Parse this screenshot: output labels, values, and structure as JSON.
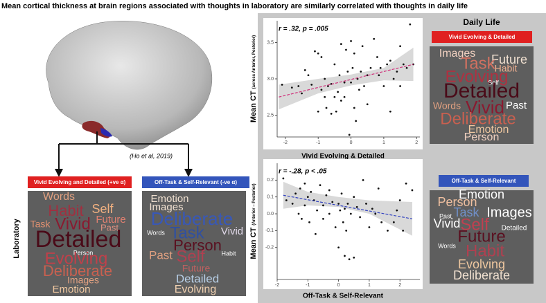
{
  "title": "Mean cortical thickness at brain regions associated with thoughts in laboratory are similarly correlated with thoughts in daily life",
  "citation": "(Ho et al, 2019)",
  "laboratory_label": "Laboratory",
  "daily_life_label": "Daily Life",
  "word_clouds": [
    {
      "header": "Vivid Evolving and Detailed (+ve α)",
      "words": [
        "Words",
        "Habit",
        "Self",
        "Future",
        "Task",
        "Vivid",
        "Past",
        "Detailed",
        "Person",
        "Evolving",
        "Deliberate",
        "Images",
        "Emotion"
      ]
    },
    {
      "header": "Off-Task & Self-Relevant (-ve α)",
      "words": [
        "Emotion",
        "Images",
        "Deliberate",
        "Words",
        "Task",
        "Vivid",
        "Person",
        "Past",
        "Self",
        "Habit",
        "Future",
        "Detailed",
        "Evolving"
      ]
    },
    {
      "header": "Vivid Evolving & Detailed",
      "words": [
        "Images",
        "Future",
        "Task",
        "Habit",
        "Evolving",
        "Self",
        "Detailed",
        "Words",
        "Vivid",
        "Past",
        "Deliberate",
        "Emotion",
        "Person"
      ]
    },
    {
      "header": "Off-Task & Self-Relevant",
      "words": [
        "Emotion",
        "Person",
        "Task",
        "Images",
        "Past",
        "Vivid",
        "Self",
        "Detailed",
        "Future",
        "Words",
        "Habit",
        "Evolving",
        "Deliberate"
      ]
    }
  ],
  "chart_data": [
    {
      "type": "scatter",
      "annotation": "r = .32, p = .005",
      "xlabel": "Vivid Evolving & Detailed",
      "ylabel": "Mean CT",
      "ylabel_note": "(across Anterior,  Posterior)",
      "xlim": [
        -2.25,
        2.1
      ],
      "ylim": [
        2.2,
        3.8
      ],
      "xticks": [
        -2,
        -1,
        0,
        1,
        2
      ],
      "yticks": [
        3.5,
        {
          "value": 3,
          "label": "3.0"
        },
        2.5
      ],
      "color": "#111111",
      "fit_color": "#d0307a",
      "band_color": "#d9d9d9",
      "x": [
        -2.1,
        -1.8,
        -1.6,
        -1.4,
        -1.3,
        -1.2,
        -1.1,
        -1.0,
        -1.0,
        -0.9,
        -0.9,
        -0.8,
        -0.8,
        -0.75,
        -0.7,
        -0.6,
        -0.6,
        -0.5,
        -0.5,
        -0.45,
        -0.4,
        -0.35,
        -0.3,
        -0.3,
        -0.2,
        -0.2,
        -0.15,
        -0.1,
        -0.05,
        0.0,
        0.0,
        0.05,
        0.1,
        0.1,
        0.2,
        0.25,
        0.3,
        0.35,
        0.4,
        0.5,
        0.5,
        0.6,
        0.7,
        0.8,
        0.85,
        0.9,
        1.0,
        1.1,
        1.2,
        1.2,
        1.3,
        1.4,
        1.5,
        1.5,
        1.6,
        1.7,
        1.8,
        1.9,
        -1.5,
        0.15
      ],
      "y": [
        2.92,
        2.88,
        2.9,
        3.12,
        3.05,
        2.92,
        3.38,
        3.35,
        2.55,
        3.3,
        2.85,
        2.75,
        3.0,
        2.6,
        2.9,
        2.52,
        2.93,
        2.75,
        3.2,
        2.55,
        2.82,
        3.05,
        2.7,
        3.48,
        2.95,
        2.75,
        3.4,
        3.1,
        2.23,
        2.95,
        3.52,
        3.15,
        2.6,
        3.35,
        3.0,
        2.85,
        3.1,
        3.45,
        2.9,
        3.05,
        2.65,
        3.15,
        3.55,
        3.3,
        3.05,
        3.15,
        2.9,
        3.2,
        2.55,
        3.25,
        3.0,
        3.1,
        3.45,
        2.9,
        3.2,
        3.15,
        3.75,
        3.2,
        2.8,
        2.42
      ],
      "fit": {
        "x": [
          -2.2,
          1.9
        ],
        "y": [
          2.75,
          3.2
        ]
      },
      "band": {
        "x": [
          -2.2,
          -1,
          0,
          1,
          1.9
        ],
        "lower": [
          2.58,
          2.8,
          2.91,
          2.98,
          2.97
        ],
        "upper": [
          2.92,
          3.0,
          3.06,
          3.15,
          3.43
        ]
      }
    },
    {
      "type": "scatter",
      "annotation": "r = -.28, p < .05",
      "xlabel": "Off-Task & Self-Relevant",
      "ylabel": "Mean CT",
      "ylabel_note": "(Anterior – Posterior)",
      "xlim": [
        -2.0,
        2.65
      ],
      "ylim": [
        -0.39,
        0.3
      ],
      "xticks": [
        -2,
        -1,
        0,
        1,
        2
      ],
      "yticks": [
        0.2,
        0.1,
        {
          "value": 0,
          "label": "0.0"
        },
        -0.1,
        -0.2
      ],
      "color": "#111111",
      "fit_color": "#3040c0",
      "band_color": "#d9d9d9",
      "x": [
        -1.8,
        -1.7,
        -1.5,
        -1.4,
        -1.3,
        -1.25,
        -1.2,
        -1.1,
        -1.1,
        -1.0,
        -0.95,
        -0.9,
        -0.8,
        -0.75,
        -0.7,
        -0.6,
        -0.5,
        -0.5,
        -0.4,
        -0.3,
        -0.3,
        -0.2,
        -0.1,
        0.0,
        0.0,
        0.05,
        0.1,
        0.15,
        0.2,
        0.2,
        0.25,
        0.3,
        0.35,
        0.4,
        0.5,
        0.5,
        0.6,
        0.7,
        0.8,
        0.9,
        1.0,
        1.1,
        1.2,
        1.3,
        1.4,
        1.6,
        1.8,
        2.0,
        2.1,
        2.2,
        2.4,
        1.9
      ],
      "y": [
        0.21,
        0.08,
        0.06,
        0.12,
        0.0,
        0.15,
        -0.03,
        0.18,
        0.05,
        0.1,
        -0.05,
        0.13,
        0.08,
        -0.12,
        0.02,
        0.17,
        0.05,
        -0.03,
        0.11,
        0.0,
        0.14,
        0.07,
        -0.08,
        0.06,
        -0.2,
        0.02,
        0.12,
        -0.05,
        0.03,
        -0.25,
        -0.1,
        0.06,
        -0.27,
        0.0,
        -0.26,
        0.1,
        0.04,
        -0.02,
        0.2,
        0.06,
        -0.08,
        0.03,
        0.0,
        0.15,
        -0.05,
        -0.1,
        -0.05,
        0.08,
        -0.1,
        0.18,
        0.14,
        0.02
      ],
      "fit": {
        "x": [
          -1.8,
          2.4
        ],
        "y": [
          0.11,
          -0.03
        ]
      },
      "band": {
        "x": [
          -1.8,
          -1,
          0,
          1,
          2.4
        ],
        "lower": [
          0.03,
          0.05,
          0.04,
          0.0,
          -0.13
        ],
        "upper": [
          0.19,
          0.13,
          0.1,
          0.08,
          0.07
        ]
      }
    }
  ]
}
